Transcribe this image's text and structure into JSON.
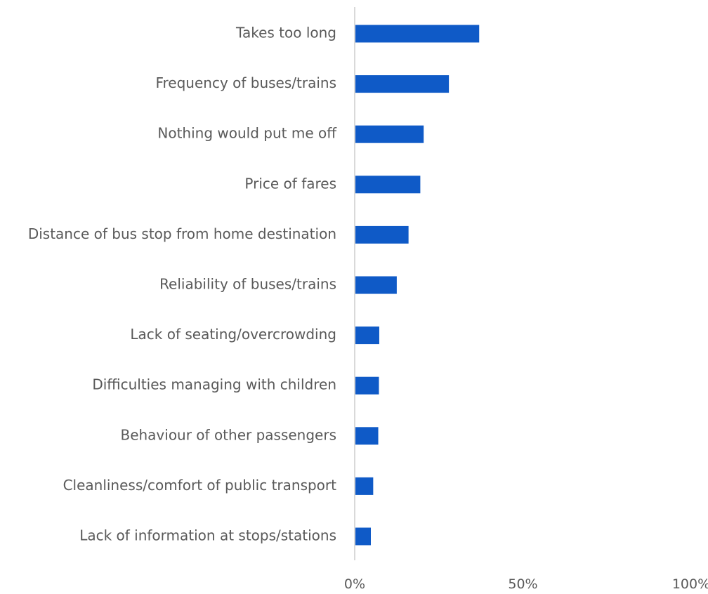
{
  "chart_data": {
    "type": "bar",
    "orientation": "horizontal",
    "categories": [
      "Takes too long",
      "Frequency of buses/trains",
      "Nothing would put me off ",
      "Price of fares",
      "Distance of bus stop from home destination",
      "Reliability of buses/trains",
      "Lack of seating/overcrowding",
      "Difficulties managing with children",
      "Behaviour of other passengers",
      "Cleanliness/comfort of public transport",
      "Lack of information at stops/stations"
    ],
    "values": [
      37,
      28,
      20.5,
      19.5,
      16,
      12.5,
      7.3,
      7.2,
      7,
      5.5,
      4.8
    ],
    "x_ticks": [
      "0%",
      "50%",
      "100%"
    ],
    "xlim": [
      0,
      100
    ],
    "x_unit": "%",
    "title": "",
    "xlabel": "",
    "ylabel": "",
    "grid": false,
    "legend": "none",
    "colors": {
      "bar": "#0F5AC7",
      "axis": "#D9D9D9",
      "text": "#595959"
    }
  }
}
